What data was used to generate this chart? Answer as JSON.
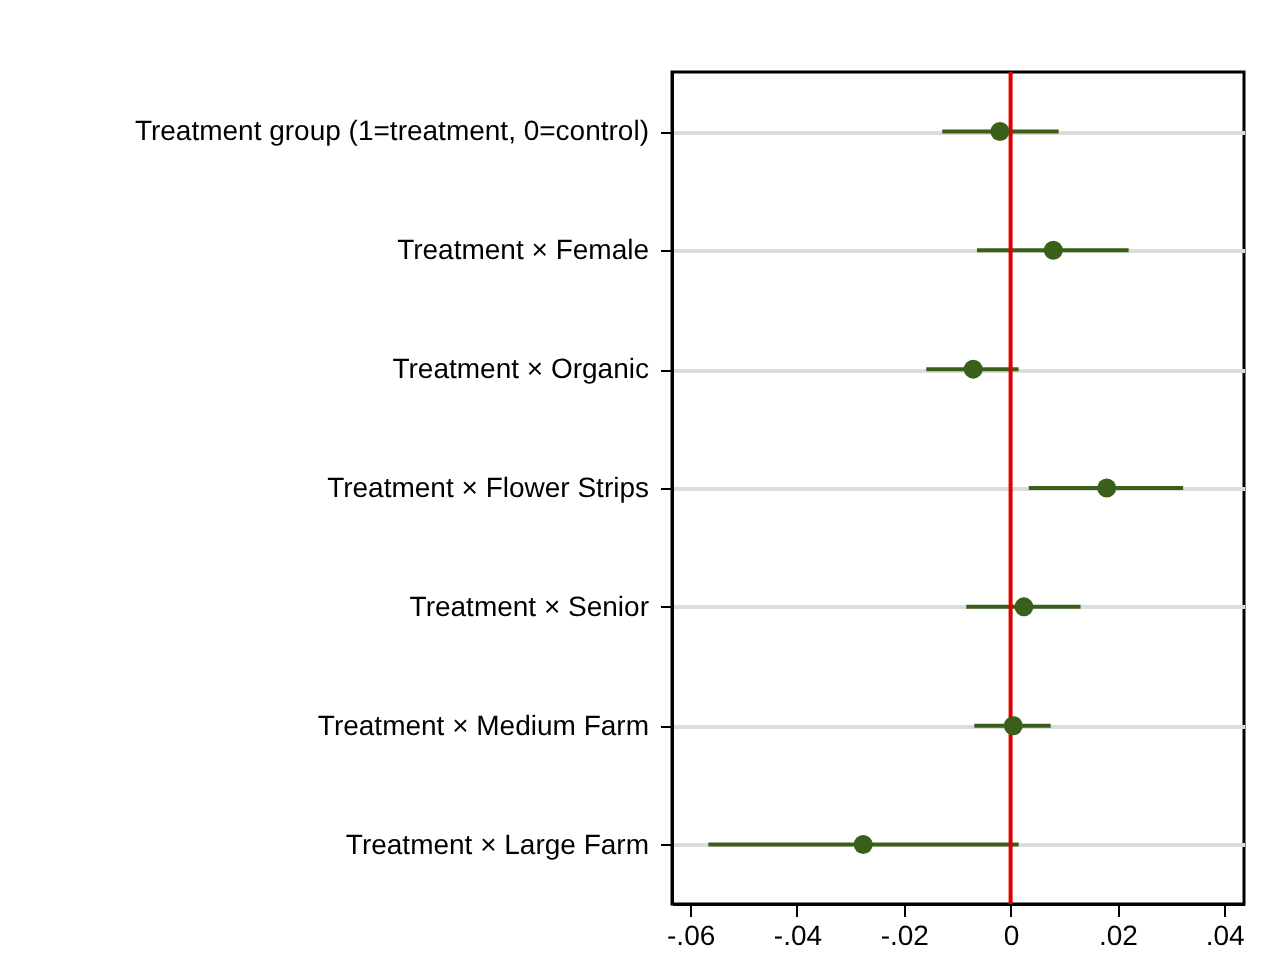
{
  "chart_data": {
    "type": "scatter",
    "orientation": "horizontal",
    "categories": [
      "Treatment group (1=treatment, 0=control)",
      "Treatment × Female",
      "Treatment × Organic",
      "Treatment × Flower Strips",
      "Treatment × Senior",
      "Treatment × Medium Farm",
      "Treatment × Large Farm"
    ],
    "values": [
      -0.002,
      0.008,
      -0.007,
      0.018,
      0.0025,
      0.0005,
      -0.0276
    ],
    "errors": [
      [
        -0.0128,
        0.009
      ],
      [
        -0.0063,
        0.0221
      ],
      [
        -0.0158,
        0.0015
      ],
      [
        0.0034,
        0.0323
      ],
      [
        -0.0083,
        0.0131
      ],
      [
        -0.0068,
        0.0075
      ],
      [
        -0.0566,
        0.0015
      ]
    ],
    "color": "#3a5f1a",
    "marker": "circle",
    "grid": "y",
    "xlim": [
      -0.0634,
      0.0437
    ],
    "xticks": [
      {
        "value": -0.06,
        "label": "-.06"
      },
      {
        "value": -0.04,
        "label": "-.04"
      },
      {
        "value": -0.02,
        "label": "-.02"
      },
      0,
      {
        "value": 0.02,
        "label": ".02"
      },
      {
        "value": 0.04,
        "label": ".04"
      }
    ],
    "ref_lines": [
      {
        "axis": "x",
        "value": 0,
        "color": "#e00000"
      }
    ]
  }
}
